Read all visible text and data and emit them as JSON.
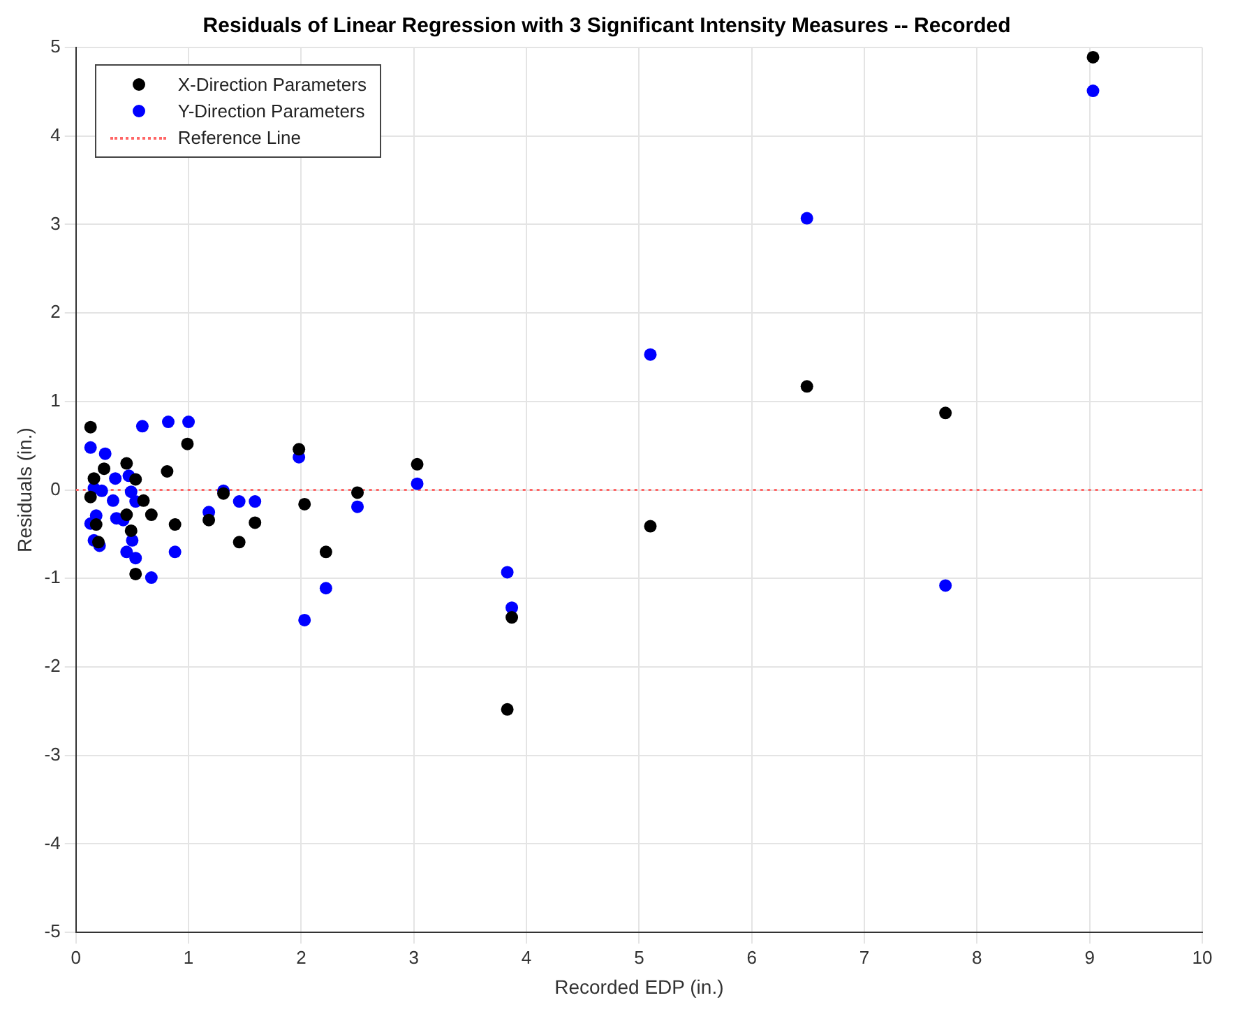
{
  "chart_data": {
    "type": "scatter",
    "title": "Residuals of Linear Regression with 3 Significant Intensity Measures -- Recorded",
    "xlabel": "Recorded EDP (in.)",
    "ylabel": "Residuals (in.)",
    "xlim": [
      0,
      10
    ],
    "xticks": [
      0,
      1,
      2,
      3,
      4,
      5,
      6,
      7,
      8,
      9,
      10
    ],
    "ylim": [
      -5,
      5
    ],
    "yticks": [
      -5,
      -4,
      -3,
      -2,
      -1,
      0,
      1,
      2,
      3,
      4,
      5
    ],
    "grid": true,
    "legend": "top left",
    "marker": "circle",
    "series": [
      {
        "name": "X-Direction Parameters",
        "color": "#000000",
        "x": [
          0.13,
          0.99,
          0.25,
          0.45,
          0.16,
          0.53,
          0.81,
          0.13,
          0.6,
          0.67,
          0.88,
          0.18,
          0.45,
          0.49,
          0.2,
          0.53,
          1.18,
          1.45,
          1.59,
          1.31,
          1.98,
          2.03,
          2.22,
          2.5,
          3.03,
          3.83,
          3.87,
          5.1,
          6.49,
          7.72,
          9.03
        ],
        "values": [
          0.71,
          0.52,
          0.24,
          0.3,
          0.13,
          0.12,
          0.21,
          -0.08,
          -0.12,
          -0.28,
          -0.39,
          -0.39,
          -0.28,
          -0.46,
          -0.59,
          -0.95,
          -0.34,
          -0.59,
          -0.37,
          -0.04,
          0.46,
          -0.16,
          -0.7,
          -0.03,
          0.29,
          -2.48,
          -1.44,
          -0.41,
          1.17,
          0.87,
          4.89
        ]
      },
      {
        "name": "Y-Direction Parameters",
        "color": "#0000ff",
        "x": [
          0.13,
          0.26,
          0.59,
          0.82,
          1.0,
          0.35,
          0.47,
          0.16,
          0.23,
          0.33,
          0.49,
          0.53,
          0.18,
          0.13,
          0.36,
          0.42,
          0.5,
          0.16,
          0.21,
          0.45,
          0.53,
          0.67,
          0.88,
          1.18,
          1.31,
          1.45,
          1.59,
          1.98,
          2.03,
          2.22,
          2.5,
          3.03,
          3.83,
          3.87,
          5.1,
          6.49,
          7.72,
          9.03
        ],
        "values": [
          0.48,
          0.41,
          0.72,
          0.77,
          0.77,
          0.13,
          0.16,
          0.02,
          -0.01,
          -0.12,
          -0.02,
          -0.13,
          -0.29,
          -0.38,
          -0.32,
          -0.34,
          -0.57,
          -0.57,
          -0.63,
          -0.7,
          -0.77,
          -0.99,
          -0.7,
          -0.25,
          -0.01,
          -0.13,
          -0.13,
          0.37,
          -1.47,
          -1.11,
          -0.19,
          0.07,
          -0.93,
          -1.33,
          1.53,
          3.07,
          -1.08,
          4.51
        ]
      }
    ],
    "ref_lines": [
      {
        "axis": "y",
        "value": 0,
        "label": "Reference Line",
        "color": "#ff6666",
        "line_style": "dotted"
      }
    ]
  }
}
